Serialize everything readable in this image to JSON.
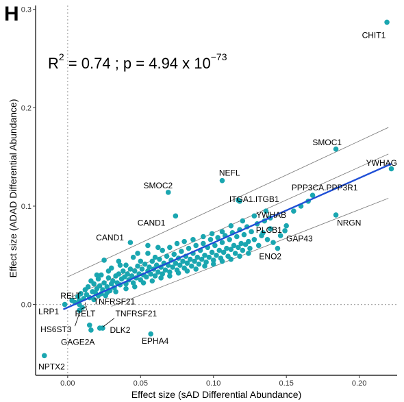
{
  "panel_label": "H",
  "stats": {
    "r2_prefix": "R",
    "r2_exp": "2",
    "r2_value": " = 0.74 ; p = 4.94 x 10",
    "p_exp": "−73"
  },
  "colors": {
    "points": "#1aa6b0",
    "fit_line": "#1f4fd6",
    "band_lines": "#808080",
    "ref_lines": "#aaaaaa",
    "axis": "#000000"
  },
  "chart_data": {
    "type": "scatter",
    "title": "",
    "xlabel": "Effect size (sAD Differential Abundance)",
    "ylabel": "Effect size (ADAD Differential Abundance)",
    "xlim": [
      -0.022,
      0.226
    ],
    "ylim": [
      -0.072,
      0.304
    ],
    "x_ticks": [
      0.0,
      0.05,
      0.1,
      0.15,
      0.2
    ],
    "x_tick_labels": [
      "0.00",
      "0.05",
      "0.10",
      "0.15",
      "0.20"
    ],
    "y_ticks": [
      0.0,
      0.1,
      0.2,
      0.3
    ],
    "y_tick_labels": [
      "0.0",
      "0.1",
      "0.2",
      "0.3"
    ],
    "grid": false,
    "reference_lines": {
      "x": 0,
      "y": 0
    },
    "fit": {
      "x": [
        -0.003,
        0.222
      ],
      "y": [
        -0.005,
        0.143
      ]
    },
    "band_lines": [
      {
        "x": [
          0.0,
          0.22
        ],
        "y": [
          0.028,
          0.18
        ]
      },
      {
        "x": [
          0.0,
          0.22
        ],
        "y": [
          0.006,
          0.153
        ]
      },
      {
        "x": [
          0.03,
          0.22
        ],
        "y": [
          -0.002,
          0.108
        ]
      }
    ],
    "labeled_points": [
      {
        "label": "CHIT1",
        "x": 0.219,
        "y": 0.287
      },
      {
        "label": "SMOC1",
        "x": 0.184,
        "y": 0.158
      },
      {
        "label": "YWHAG",
        "x": 0.222,
        "y": 0.138
      },
      {
        "label": "NEFL",
        "x": 0.106,
        "y": 0.126
      },
      {
        "label": "SMOC2",
        "x": 0.069,
        "y": 0.114
      },
      {
        "label": "PPP3CA.PPP3R1",
        "x": 0.168,
        "y": 0.111
      },
      {
        "label": "ITGA1.ITGB1",
        "x": 0.118,
        "y": 0.105
      },
      {
        "label": "CAND1",
        "x": 0.074,
        "y": 0.09
      },
      {
        "label": "YWHAB",
        "x": 0.139,
        "y": 0.088
      },
      {
        "label": "NRGN",
        "x": 0.184,
        "y": 0.091
      },
      {
        "label": "PLCB1",
        "x": 0.134,
        "y": 0.073
      },
      {
        "label": "CAND1",
        "x": 0.043,
        "y": 0.063
      },
      {
        "label": "GAP43",
        "x": 0.149,
        "y": 0.075
      },
      {
        "label": "ENO2",
        "x": 0.144,
        "y": 0.057
      },
      {
        "label": "RELT",
        "x": 0.008,
        "y": 0.0
      },
      {
        "label": "TNFRSF21",
        "x": 0.01,
        "y": -0.003
      },
      {
        "label": "LRP1",
        "x": -0.002,
        "y": 0.0
      },
      {
        "label": "RELT",
        "x": 0.015,
        "y": -0.021
      },
      {
        "label": "TNFRSF21",
        "x": 0.024,
        "y": -0.024
      },
      {
        "label": "HS6ST3",
        "x": 0.008,
        "y": -0.006
      },
      {
        "label": "DLK2",
        "x": 0.022,
        "y": -0.024
      },
      {
        "label": "GAGE2A",
        "x": 0.016,
        "y": -0.026
      },
      {
        "label": "EPHA4",
        "x": 0.057,
        "y": -0.03
      },
      {
        "label": "NPTX2",
        "x": -0.016,
        "y": -0.052
      }
    ],
    "label_text_positions": [
      {
        "label": "CHIT1",
        "x": 0.21,
        "y": 0.271,
        "anchor": "middle"
      },
      {
        "label": "SMOC1",
        "x": 0.188,
        "y": 0.162,
        "anchor": "end"
      },
      {
        "label": "YWHAG",
        "x": 0.226,
        "y": 0.141,
        "anchor": "end"
      },
      {
        "label": "NEFL",
        "x": 0.111,
        "y": 0.131,
        "anchor": "middle"
      },
      {
        "label": "SMOC2",
        "x": 0.062,
        "y": 0.118,
        "anchor": "middle"
      },
      {
        "label": "PPP3CA.PPP3R1",
        "x": 0.199,
        "y": 0.116,
        "anchor": "end"
      },
      {
        "label": "ITGA1.ITGB1",
        "x": 0.145,
        "y": 0.104,
        "anchor": "end"
      },
      {
        "label": "CAND1",
        "x": 0.067,
        "y": 0.08,
        "anchor": "end"
      },
      {
        "label": "YWHAB",
        "x": 0.15,
        "y": 0.088,
        "anchor": "end"
      },
      {
        "label": "NRGN",
        "x": 0.193,
        "y": 0.08,
        "anchor": "middle"
      },
      {
        "label": "PLCB1",
        "x": 0.147,
        "y": 0.073,
        "anchor": "end"
      },
      {
        "label": "CAND1",
        "x": 0.029,
        "y": 0.065,
        "anchor": "middle"
      },
      {
        "label": "GAP43",
        "x": 0.159,
        "y": 0.064,
        "anchor": "middle"
      },
      {
        "label": "ENO2",
        "x": 0.139,
        "y": 0.046,
        "anchor": "middle"
      },
      {
        "label": "RELT",
        "x": 0.002,
        "y": 0.006,
        "anchor": "middle"
      },
      {
        "label": "TNFRSF21",
        "x": 0.032,
        "y": 0.0,
        "anchor": "middle"
      },
      {
        "label": "LRP1",
        "x": -0.013,
        "y": -0.01,
        "anchor": "middle"
      },
      {
        "label": "RELT",
        "x": 0.012,
        "y": -0.012,
        "anchor": "middle"
      },
      {
        "label": "TNFRSF21",
        "x": 0.047,
        "y": -0.012,
        "anchor": "middle"
      },
      {
        "label": "HS6ST3",
        "x": -0.008,
        "y": -0.028,
        "anchor": "middle"
      },
      {
        "label": "DLK2",
        "x": 0.036,
        "y": -0.029,
        "anchor": "middle"
      },
      {
        "label": "GAGE2A",
        "x": 0.007,
        "y": -0.041,
        "anchor": "middle"
      },
      {
        "label": "EPHA4",
        "x": 0.06,
        "y": -0.04,
        "anchor": "middle"
      },
      {
        "label": "NPTX2",
        "x": -0.011,
        "y": -0.066,
        "anchor": "middle"
      }
    ],
    "label_leaders": [
      {
        "label": "RELT",
        "x1": 0.012,
        "y1": 0.002,
        "x2": 0.013,
        "y2": -0.006
      },
      {
        "label": "TNFRSF21",
        "x1": 0.013,
        "y1": -0.002,
        "x2": 0.009,
        "y2": -0.005
      },
      {
        "label": "HS6ST3",
        "x1": 0.005,
        "y1": -0.022,
        "x2": 0.008,
        "y2": -0.009
      },
      {
        "label": "TNFRSF21",
        "x1": 0.032,
        "y1": -0.014,
        "x2": 0.024,
        "y2": -0.023
      }
    ],
    "cluster_points": [
      [
        0.005,
        0.002
      ],
      [
        0.008,
        0.004
      ],
      [
        0.011,
        0.006
      ],
      [
        0.013,
        0.01
      ],
      [
        0.014,
        0.018
      ],
      [
        0.015,
        0.007
      ],
      [
        0.017,
        0.013
      ],
      [
        0.018,
        0.021
      ],
      [
        0.019,
        0.012
      ],
      [
        0.02,
        0.016
      ],
      [
        0.021,
        0.026
      ],
      [
        0.022,
        0.019
      ],
      [
        0.023,
        0.011
      ],
      [
        0.023,
        0.03
      ],
      [
        0.024,
        0.015
      ],
      [
        0.025,
        0.022
      ],
      [
        0.025,
        0.045
      ],
      [
        0.026,
        0.009
      ],
      [
        0.027,
        0.018
      ],
      [
        0.028,
        0.027
      ],
      [
        0.029,
        0.014
      ],
      [
        0.03,
        0.021
      ],
      [
        0.03,
        0.037
      ],
      [
        0.031,
        0.024
      ],
      [
        0.032,
        0.017
      ],
      [
        0.033,
        0.029
      ],
      [
        0.034,
        0.022
      ],
      [
        0.035,
        0.031
      ],
      [
        0.035,
        0.044
      ],
      [
        0.036,
        0.02
      ],
      [
        0.037,
        0.026
      ],
      [
        0.038,
        0.034
      ],
      [
        0.039,
        0.028
      ],
      [
        0.04,
        0.021
      ],
      [
        0.04,
        0.04
      ],
      [
        0.041,
        0.031
      ],
      [
        0.042,
        0.025
      ],
      [
        0.043,
        0.036
      ],
      [
        0.044,
        0.029
      ],
      [
        0.045,
        0.022
      ],
      [
        0.045,
        0.048
      ],
      [
        0.046,
        0.034
      ],
      [
        0.047,
        0.027
      ],
      [
        0.048,
        0.039
      ],
      [
        0.049,
        0.031
      ],
      [
        0.05,
        0.025
      ],
      [
        0.05,
        0.044
      ],
      [
        0.051,
        0.036
      ],
      [
        0.052,
        0.03
      ],
      [
        0.053,
        0.041
      ],
      [
        0.054,
        0.028
      ],
      [
        0.055,
        0.034
      ],
      [
        0.055,
        0.052
      ],
      [
        0.056,
        0.038
      ],
      [
        0.057,
        0.031
      ],
      [
        0.058,
        0.044
      ],
      [
        0.059,
        0.036
      ],
      [
        0.06,
        0.029
      ],
      [
        0.06,
        0.048
      ],
      [
        0.061,
        0.04
      ],
      [
        0.062,
        0.033
      ],
      [
        0.063,
        0.046
      ],
      [
        0.064,
        0.038
      ],
      [
        0.065,
        0.031
      ],
      [
        0.065,
        0.055
      ],
      [
        0.066,
        0.042
      ],
      [
        0.067,
        0.035
      ],
      [
        0.068,
        0.049
      ],
      [
        0.069,
        0.04
      ],
      [
        0.07,
        0.033
      ],
      [
        0.07,
        0.058
      ],
      [
        0.071,
        0.045
      ],
      [
        0.072,
        0.038
      ],
      [
        0.073,
        0.051
      ],
      [
        0.074,
        0.042
      ],
      [
        0.075,
        0.035
      ],
      [
        0.075,
        0.062
      ],
      [
        0.076,
        0.047
      ],
      [
        0.077,
        0.04
      ],
      [
        0.078,
        0.054
      ],
      [
        0.079,
        0.044
      ],
      [
        0.08,
        0.037
      ],
      [
        0.08,
        0.064
      ],
      [
        0.081,
        0.049
      ],
      [
        0.082,
        0.042
      ],
      [
        0.083,
        0.057
      ],
      [
        0.084,
        0.046
      ],
      [
        0.085,
        0.039
      ],
      [
        0.086,
        0.052
      ],
      [
        0.087,
        0.044
      ],
      [
        0.088,
        0.06
      ],
      [
        0.089,
        0.048
      ],
      [
        0.09,
        0.041
      ],
      [
        0.091,
        0.055
      ],
      [
        0.092,
        0.046
      ],
      [
        0.093,
        0.062
      ],
      [
        0.094,
        0.05
      ],
      [
        0.095,
        0.043
      ],
      [
        0.096,
        0.058
      ],
      [
        0.097,
        0.048
      ],
      [
        0.098,
        0.066
      ],
      [
        0.099,
        0.053
      ],
      [
        0.1,
        0.045
      ],
      [
        0.101,
        0.06
      ],
      [
        0.102,
        0.05
      ],
      [
        0.103,
        0.068
      ],
      [
        0.104,
        0.055
      ],
      [
        0.105,
        0.047
      ],
      [
        0.106,
        0.063
      ],
      [
        0.107,
        0.053
      ],
      [
        0.108,
        0.07
      ],
      [
        0.109,
        0.057
      ],
      [
        0.11,
        0.049
      ],
      [
        0.111,
        0.066
      ],
      [
        0.112,
        0.056
      ],
      [
        0.113,
        0.073
      ],
      [
        0.114,
        0.06
      ],
      [
        0.115,
        0.052
      ],
      [
        0.116,
        0.069
      ],
      [
        0.117,
        0.058
      ],
      [
        0.118,
        0.076
      ],
      [
        0.119,
        0.062
      ],
      [
        0.12,
        0.055
      ],
      [
        0.121,
        0.071
      ],
      [
        0.122,
        0.061
      ],
      [
        0.123,
        0.079
      ],
      [
        0.124,
        0.064
      ],
      [
        0.125,
        0.057
      ],
      [
        0.126,
        0.074
      ],
      [
        0.128,
        0.066
      ],
      [
        0.13,
        0.082
      ],
      [
        0.131,
        0.06
      ],
      [
        0.133,
        0.07
      ],
      [
        0.135,
        0.085
      ],
      [
        0.137,
        0.066
      ],
      [
        0.139,
        0.077
      ],
      [
        0.141,
        0.063
      ],
      [
        0.055,
        0.06
      ],
      [
        0.062,
        0.058
      ],
      [
        0.048,
        0.052
      ],
      [
        0.036,
        0.04
      ],
      [
        0.028,
        0.034
      ],
      [
        0.02,
        0.03
      ],
      [
        0.016,
        0.024
      ],
      [
        0.012,
        0.015
      ],
      [
        0.009,
        0.011
      ],
      [
        0.007,
        0.008
      ],
      [
        0.003,
        0.004
      ],
      [
        0.018,
        0.005
      ],
      [
        0.021,
        0.009
      ],
      [
        0.027,
        0.012
      ],
      [
        0.033,
        0.013
      ],
      [
        0.04,
        0.016
      ],
      [
        0.046,
        0.018
      ],
      [
        0.052,
        0.022
      ],
      [
        0.058,
        0.024
      ],
      [
        0.064,
        0.027
      ],
      [
        0.07,
        0.029
      ],
      [
        0.076,
        0.032
      ],
      [
        0.082,
        0.034
      ],
      [
        0.088,
        0.036
      ],
      [
        0.094,
        0.039
      ],
      [
        0.1,
        0.041
      ],
      [
        0.106,
        0.044
      ],
      [
        0.112,
        0.046
      ],
      [
        0.118,
        0.049
      ],
      [
        0.124,
        0.052
      ],
      [
        0.106,
        0.074
      ],
      [
        0.112,
        0.08
      ],
      [
        0.099,
        0.072
      ],
      [
        0.093,
        0.069
      ],
      [
        0.086,
        0.066
      ],
      [
        0.12,
        0.085
      ],
      [
        0.146,
        0.07
      ],
      [
        0.15,
        0.08
      ],
      [
        0.155,
        0.095
      ],
      [
        0.16,
        0.1
      ],
      [
        0.165,
        0.105
      ],
      [
        0.136,
        0.095
      ],
      [
        0.128,
        0.09
      ],
      [
        0.117,
        0.106
      ]
    ]
  }
}
